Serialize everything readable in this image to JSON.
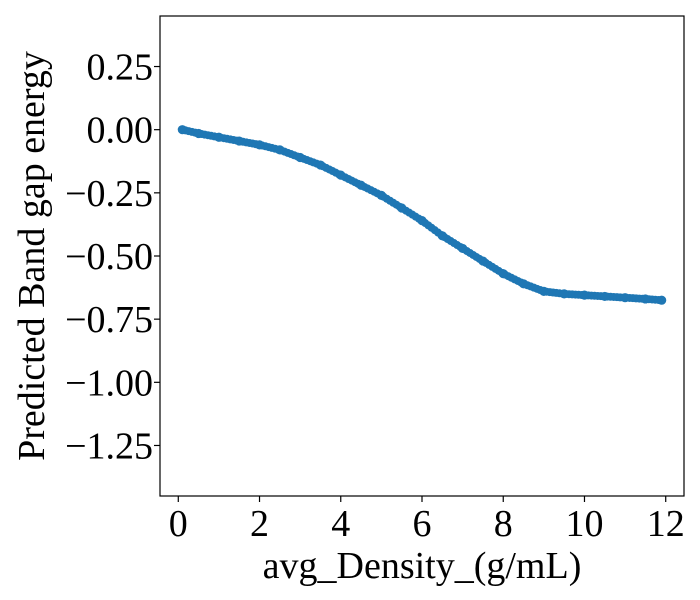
{
  "chart_data": {
    "type": "scatter",
    "title": "",
    "xlabel": "avg_Density_(g/mL)",
    "ylabel": "Predicted Band gap energy",
    "xlim": [
      -0.45,
      12.45
    ],
    "ylim": [
      -1.45,
      0.45
    ],
    "x_ticks": [
      0,
      2,
      4,
      6,
      8,
      10,
      12
    ],
    "x_tick_labels": [
      "0",
      "2",
      "4",
      "6",
      "8",
      "10",
      "12"
    ],
    "y_ticks": [
      0.25,
      0.0,
      -0.25,
      -0.5,
      -0.75,
      -1.0,
      -1.25
    ],
    "y_tick_labels": [
      "0.25",
      "0.00",
      "−0.25",
      "−0.50",
      "−0.75",
      "−1.00",
      "−1.25"
    ],
    "grid": false,
    "legend": "none",
    "marker_color": "#1f77b4",
    "series": [
      {
        "x": [
          0.1,
          0.5,
          1.0,
          1.5,
          2.0,
          2.5,
          3.0,
          3.5,
          4.0,
          4.5,
          5.0,
          5.5,
          6.0,
          6.5,
          7.0,
          7.5,
          8.0,
          8.5,
          9.0,
          9.5,
          10.0,
          10.5,
          11.0,
          11.5,
          11.9
        ],
        "y": [
          0.0,
          -0.015,
          -0.03,
          -0.045,
          -0.06,
          -0.08,
          -0.11,
          -0.14,
          -0.18,
          -0.22,
          -0.26,
          -0.31,
          -0.36,
          -0.42,
          -0.47,
          -0.52,
          -0.57,
          -0.61,
          -0.64,
          -0.65,
          -0.655,
          -0.66,
          -0.665,
          -0.67,
          -0.675
        ]
      }
    ]
  }
}
